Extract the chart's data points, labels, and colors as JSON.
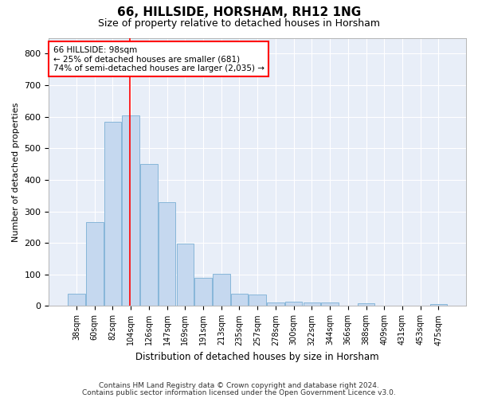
{
  "title": "66, HILLSIDE, HORSHAM, RH12 1NG",
  "subtitle": "Size of property relative to detached houses in Horsham",
  "xlabel": "Distribution of detached houses by size in Horsham",
  "ylabel": "Number of detached properties",
  "bar_color": "#c5d8ef",
  "bar_edge_color": "#7aafd4",
  "background_color": "#e8eef8",
  "grid_color": "#ffffff",
  "categories": [
    "38sqm",
    "60sqm",
    "82sqm",
    "104sqm",
    "126sqm",
    "147sqm",
    "169sqm",
    "191sqm",
    "213sqm",
    "235sqm",
    "257sqm",
    "278sqm",
    "300sqm",
    "322sqm",
    "344sqm",
    "366sqm",
    "388sqm",
    "409sqm",
    "431sqm",
    "453sqm",
    "475sqm"
  ],
  "values": [
    38,
    265,
    585,
    605,
    450,
    328,
    197,
    90,
    102,
    38,
    37,
    12,
    13,
    10,
    10,
    0,
    8,
    0,
    0,
    0,
    5
  ],
  "ylim": [
    0,
    850
  ],
  "yticks": [
    0,
    100,
    200,
    300,
    400,
    500,
    600,
    700,
    800
  ],
  "property_sqm": 98,
  "property_line_idx": 2.93,
  "property_line_label": "66 HILLSIDE: 98sqm",
  "annotation_line1": "← 25% of detached houses are smaller (681)",
  "annotation_line2": "74% of semi-detached houses are larger (2,035) →",
  "footer1": "Contains HM Land Registry data © Crown copyright and database right 2024.",
  "footer2": "Contains public sector information licensed under the Open Government Licence v3.0."
}
